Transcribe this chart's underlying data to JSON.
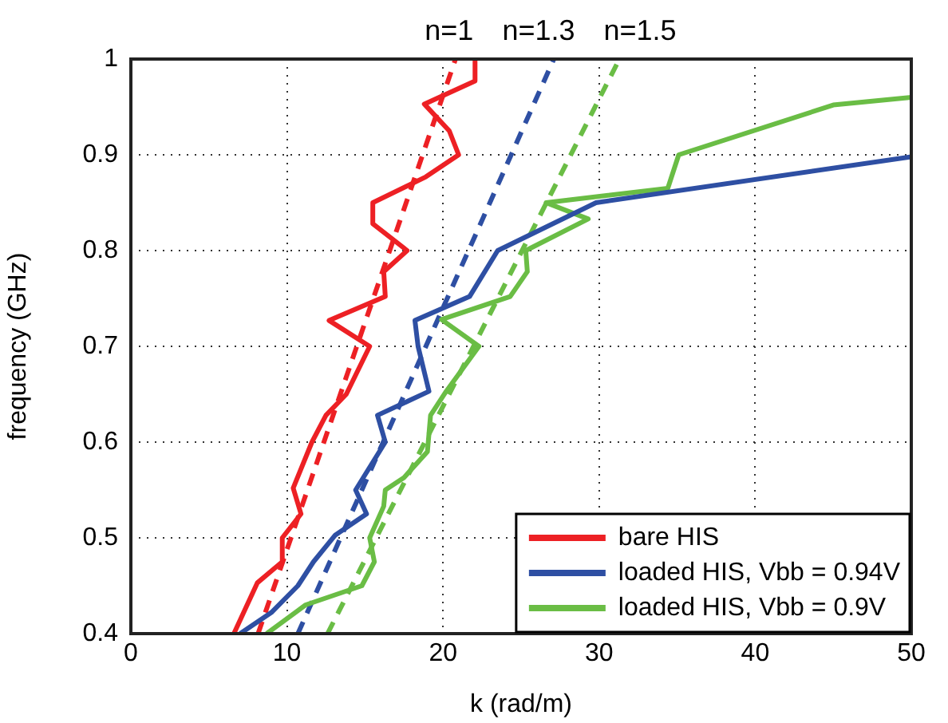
{
  "chart_data": {
    "type": "line",
    "xlabel": "k (rad/m)",
    "ylabel": "frequency (GHz)",
    "xlim": [
      0,
      50
    ],
    "xticks": [
      0,
      10,
      20,
      30,
      40,
      50
    ],
    "ylim": [
      0.4,
      1
    ],
    "yticks": [
      0.4,
      0.5,
      0.6,
      0.7,
      0.8,
      0.9,
      1
    ],
    "grid": true,
    "legend": "bottom right",
    "marker": "none",
    "annotations": [
      "n=1",
      "n=1.3",
      "n=1.5"
    ],
    "series": [
      {
        "name": "bare HIS",
        "color": "#ed2024",
        "line_style": "solid",
        "x": [
          6.6,
          8.1,
          9.7,
          9.7,
          10.9,
          10.4,
          11.6,
          12.5,
          13.8,
          15.3,
          12.7,
          16.3,
          16.2,
          17.7,
          15.5,
          15.5,
          18.9,
          21.0,
          20.4,
          18.8,
          22.05,
          22.05
        ],
        "values": [
          0.4,
          0.453,
          0.475,
          0.5,
          0.525,
          0.552,
          0.6,
          0.628,
          0.65,
          0.7,
          0.727,
          0.752,
          0.778,
          0.8,
          0.828,
          0.85,
          0.877,
          0.9,
          0.925,
          0.953,
          0.977,
          1.0
        ]
      },
      {
        "name": "loaded HIS, Vbb = 0.94V",
        "color": "#2e4fa3",
        "line_style": "solid",
        "x": [
          7.0,
          9.0,
          10.7,
          11.7,
          13.1,
          15.1,
          14.4,
          16.3,
          15.8,
          19.1,
          18.4,
          18.2,
          21.7,
          23.5,
          29.8,
          50
        ],
        "values": [
          0.4,
          0.422,
          0.45,
          0.475,
          0.503,
          0.525,
          0.55,
          0.6,
          0.628,
          0.653,
          0.7,
          0.727,
          0.752,
          0.8,
          0.85,
          0.898
        ]
      },
      {
        "name": "loaded HIS, Vbb = 0.9V",
        "color": "#6abd45",
        "line_style": "solid",
        "x": [
          8.7,
          11.2,
          14.8,
          15.6,
          15.3,
          16.2,
          16.3,
          17.5,
          19.0,
          19.2,
          20.2,
          22.3,
          19.9,
          24.3,
          25.4,
          25.3,
          29.3,
          26.6,
          34.4,
          35.1,
          45.0,
          50
        ],
        "values": [
          0.4,
          0.43,
          0.45,
          0.475,
          0.5,
          0.533,
          0.55,
          0.563,
          0.59,
          0.628,
          0.653,
          0.7,
          0.728,
          0.752,
          0.778,
          0.8,
          0.833,
          0.85,
          0.865,
          0.9,
          0.952,
          0.96
        ]
      },
      {
        "color": "#ed2024",
        "line_style": "dashed",
        "x": [
          8.15,
          20.8
        ],
        "values": [
          0.4,
          1.0
        ]
      },
      {
        "color": "#2e4fa3",
        "line_style": "dashed",
        "x": [
          10.7,
          27.1
        ],
        "values": [
          0.4,
          1.0
        ]
      },
      {
        "color": "#6abd45",
        "line_style": "dashed",
        "x": [
          12.6,
          31.3
        ],
        "values": [
          0.4,
          1.0
        ]
      }
    ]
  }
}
